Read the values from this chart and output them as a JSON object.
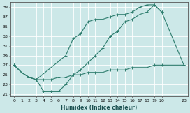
{
  "xlabel": "Humidex (Indice chaleur)",
  "bg_color": "#cce8e8",
  "grid_color": "#b8d8d8",
  "line_color": "#2e7d6e",
  "xlim": [
    -0.5,
    23.5
  ],
  "ylim": [
    20.5,
    40
  ],
  "yticks": [
    21,
    23,
    25,
    27,
    29,
    31,
    33,
    35,
    37,
    39
  ],
  "xticks": [
    0,
    1,
    2,
    3,
    4,
    5,
    6,
    7,
    8,
    9,
    10,
    11,
    12,
    13,
    14,
    15,
    16,
    17,
    18,
    19,
    20,
    23
  ],
  "line1_x": [
    0,
    1,
    2,
    3,
    4,
    5,
    6,
    7,
    8,
    9,
    10,
    11,
    12,
    13,
    14,
    15,
    16,
    17,
    18,
    19,
    20,
    23
  ],
  "line1_y": [
    27,
    25.5,
    24.5,
    24,
    21.5,
    21.5,
    21.5,
    23,
    25,
    26,
    27.5,
    29,
    30.5,
    33,
    34,
    36,
    36.5,
    37.5,
    38,
    39.5,
    38,
    27
  ],
  "line2_x": [
    0,
    1,
    2,
    3,
    7,
    8,
    9,
    10,
    11,
    12,
    13,
    14,
    15,
    16,
    17,
    18,
    19,
    20
  ],
  "line2_y": [
    27,
    25.5,
    24.5,
    24,
    29,
    32.5,
    33.5,
    36,
    36.5,
    36.5,
    37,
    37.5,
    37.5,
    38,
    39,
    39.5,
    39.5,
    38
  ],
  "line3_x": [
    0,
    1,
    2,
    3,
    4,
    5,
    6,
    7,
    8,
    9,
    10,
    11,
    12,
    13,
    14,
    15,
    16,
    17,
    18,
    19,
    20,
    23
  ],
  "line3_y": [
    27,
    25.5,
    24.5,
    24,
    24,
    24,
    24.5,
    24.5,
    25,
    25,
    25.5,
    25.5,
    25.5,
    26,
    26,
    26,
    26.5,
    26.5,
    26.5,
    27,
    27,
    27
  ]
}
